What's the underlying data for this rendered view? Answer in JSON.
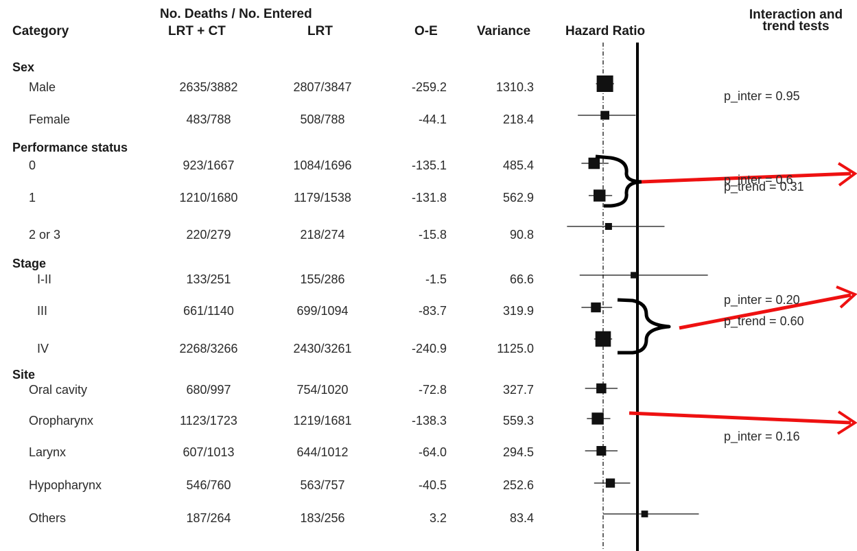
{
  "headers": {
    "category": "Category",
    "deaths_entered": "No. Deaths / No. Entered",
    "arm1": "LRT + CT",
    "arm2": "LRT",
    "oe": "O-E",
    "variance": "Variance",
    "hr": "Hazard Ratio",
    "tests_line1": "Interaction and",
    "tests_line2": "trend tests"
  },
  "groups": [
    {
      "label": "Sex"
    },
    {
      "label": "Performance status"
    },
    {
      "label": "Stage"
    },
    {
      "label": "Site"
    }
  ],
  "rows": [
    {
      "category": "Male",
      "lrt_ct": "2635/3882",
      "lrt": "2807/3847",
      "oe": "-259.2",
      "variance": "1310.3"
    },
    {
      "category": "Female",
      "lrt_ct": "483/788",
      "lrt": "508/788",
      "oe": "-44.1",
      "variance": "218.4"
    },
    {
      "category": "0",
      "lrt_ct": "923/1667",
      "lrt": "1084/1696",
      "oe": "-135.1",
      "variance": "485.4"
    },
    {
      "category": "1",
      "lrt_ct": "1210/1680",
      "lrt": "1179/1538",
      "oe": "-131.8",
      "variance": "562.9"
    },
    {
      "category": "2 or 3",
      "lrt_ct": "220/279",
      "lrt": "218/274",
      "oe": "-15.8",
      "variance": "90.8"
    },
    {
      "category": "I-II",
      "lrt_ct": "133/251",
      "lrt": "155/286",
      "oe": "-1.5",
      "variance": "66.6"
    },
    {
      "category": "III",
      "lrt_ct": "661/1140",
      "lrt": "699/1094",
      "oe": "-83.7",
      "variance": "319.9"
    },
    {
      "category": "IV",
      "lrt_ct": "2268/3266",
      "lrt": "2430/3261",
      "oe": "-240.9",
      "variance": "1125.0"
    },
    {
      "category": "Oral cavity",
      "lrt_ct": "680/997",
      "lrt": "754/1020",
      "oe": "-72.8",
      "variance": "327.7"
    },
    {
      "category": "Oropharynx",
      "lrt_ct": "1123/1723",
      "lrt": "1219/1681",
      "oe": "-138.3",
      "variance": "559.3"
    },
    {
      "category": "Larynx",
      "lrt_ct": "607/1013",
      "lrt": "644/1012",
      "oe": "-64.0",
      "variance": "294.5"
    },
    {
      "category": "Hypopharynx",
      "lrt_ct": "546/760",
      "lrt": "563/757",
      "oe": "-40.5",
      "variance": "252.6"
    },
    {
      "category": "Others",
      "lrt_ct": "187/264",
      "lrt": "183/256",
      "oe": "3.2",
      "variance": "83.4"
    }
  ],
  "tests": [
    {
      "text": "p_inter  =  0.95"
    },
    {
      "text": "p_inter  =  0.6"
    },
    {
      "text": "p_trend = 0.31"
    },
    {
      "text": "p_inter  =  0.20"
    },
    {
      "text": "p_trend = 0.60"
    },
    {
      "text": "p_inter  =  0.16"
    }
  ],
  "colors": {
    "annotation_arrow": "#ee1111",
    "markers": "#111111"
  },
  "chart_data": {
    "type": "forest",
    "title": "",
    "xlabel": "Hazard Ratio",
    "reference_line": 1.0,
    "overall_line": 0.81,
    "xlim": [
      0.4,
      1.6
    ],
    "series": [
      {
        "category": "Male",
        "hr": 0.82,
        "ci": [
          0.77,
          0.87
        ]
      },
      {
        "category": "Female",
        "hr": 0.82,
        "ci": [
          0.67,
          0.99
        ]
      },
      {
        "category": "0",
        "hr": 0.76,
        "ci": [
          0.69,
          0.84
        ]
      },
      {
        "category": "1",
        "hr": 0.79,
        "ci": [
          0.73,
          0.86
        ]
      },
      {
        "category": "2 or 3",
        "hr": 0.84,
        "ci": [
          0.61,
          1.15
        ]
      },
      {
        "category": "I-II",
        "hr": 0.98,
        "ci": [
          0.68,
          1.39
        ]
      },
      {
        "category": "III",
        "hr": 0.77,
        "ci": [
          0.69,
          0.86
        ]
      },
      {
        "category": "IV",
        "hr": 0.81,
        "ci": [
          0.76,
          0.86
        ]
      },
      {
        "category": "Oral cavity",
        "hr": 0.8,
        "ci": [
          0.71,
          0.89
        ]
      },
      {
        "category": "Oropharynx",
        "hr": 0.78,
        "ci": [
          0.72,
          0.85
        ]
      },
      {
        "category": "Larynx",
        "hr": 0.8,
        "ci": [
          0.71,
          0.89
        ]
      },
      {
        "category": "Hypopharynx",
        "hr": 0.85,
        "ci": [
          0.76,
          0.96
        ]
      },
      {
        "category": "Others",
        "hr": 1.04,
        "ci": [
          0.81,
          1.34
        ]
      }
    ],
    "box_weight": [
      1310.3,
      218.4,
      485.4,
      562.9,
      90.8,
      66.6,
      319.9,
      1125.0,
      327.7,
      559.3,
      294.5,
      252.6,
      83.4
    ]
  }
}
